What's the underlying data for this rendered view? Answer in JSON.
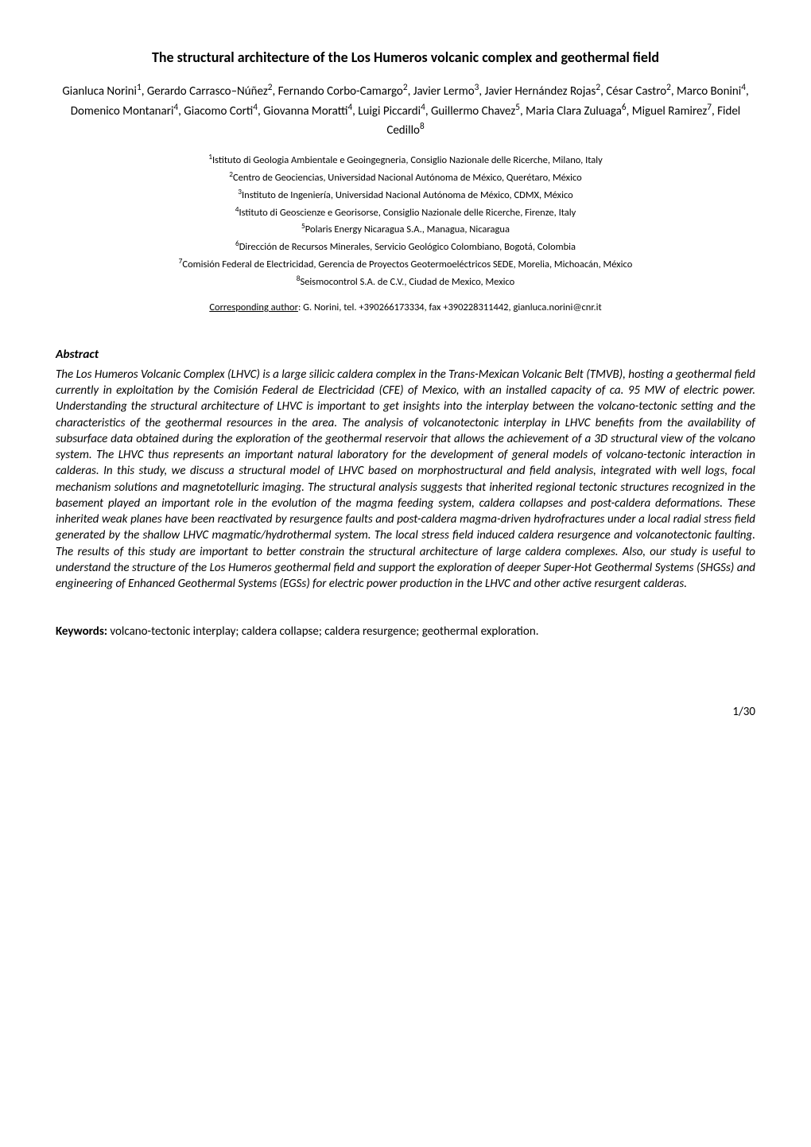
{
  "title": "The structural architecture of the Los Humeros volcanic complex and geothermal field",
  "authors_html": "Gianluca Norini<sup>1</sup>, Gerardo Carrasco–Núñez<sup>2</sup>, Fernando Corbo-Camargo<sup>2</sup>, Javier Lermo<sup>3</sup>, Javier Hernández Rojas<sup>2</sup>, César Castro<sup>2</sup>, Marco Bonini<sup>4</sup>, Domenico Montanari<sup>4</sup>, Giacomo Corti<sup>4</sup>, Giovanna Moratti<sup>4</sup>, Luigi Piccardi<sup>4</sup>, Guillermo Chavez<sup>5</sup>, Maria Clara Zuluaga<sup>6</sup>, Miguel Ramirez<sup>7</sup>, Fidel Cedillo<sup>8</sup>",
  "affiliations": [
    {
      "num": "1",
      "text": "Istituto di Geologia Ambientale e Geoingegneria, Consiglio Nazionale delle Ricerche, Milano, Italy"
    },
    {
      "num": "2",
      "text": "Centro de Geociencias, Universidad Nacional Autónoma de México, Querétaro, México"
    },
    {
      "num": "3",
      "text": "Instituto de Ingeniería, Universidad Nacional Autónoma de México, CDMX, México"
    },
    {
      "num": "4",
      "text": "Istituto di Geoscienze e Georisorse, Consiglio Nazionale delle Ricerche, Firenze, Italy"
    },
    {
      "num": "5",
      "text": "Polaris Energy Nicaragua S.A., Managua, Nicaragua"
    },
    {
      "num": "6",
      "text": "Dirección de Recursos Minerales, Servicio Geológico Colombiano, Bogotá, Colombia"
    },
    {
      "num": "7",
      "text": "Comisión Federal de Electricidad, Gerencia de Proyectos Geotermoeléctricos SEDE, Morelia, Michoacán, México"
    },
    {
      "num": "8",
      "text": "Seismocontrol S.A. de C.V., Ciudad de Mexico, Mexico"
    }
  ],
  "corresponding": {
    "label": "Corresponding author",
    "text": ": G. Norini, tel. +390266173334, fax +390228311442, gianluca.norini@cnr.it"
  },
  "abstract": {
    "heading": "Abstract",
    "body": "The Los Humeros Volcanic Complex (LHVC) is a large silicic caldera complex in the Trans-Mexican Volcanic Belt (TMVB), hosting a geothermal field currently in exploitation by the Comisión Federal de Electricidad (CFE) of Mexico, with an installed capacity of ca. 95 MW of electric power. Understanding the structural architecture of LHVC is important to get insights into the interplay between the volcano-tectonic setting and the characteristics of the geothermal resources in the area. The analysis of volcanotectonic interplay in LHVC benefits from the availability of subsurface data obtained during the exploration of the geothermal reservoir that allows the achievement of a 3D structural view of the volcano system. The LHVC thus represents an important natural laboratory for the development of general models of volcano-tectonic interaction in calderas. In this study, we discuss a structural model of LHVC based on morphostructural and field analysis, integrated with well logs, focal mechanism solutions and magnetotelluric imaging. The structural analysis suggests that inherited regional tectonic structures recognized in the basement played an important role in the evolution of the magma feeding system, caldera collapses and post-caldera deformations. These inherited weak planes have been reactivated by resurgence faults and post-caldera magma-driven hydrofractures under a local radial stress field generated by the shallow LHVC magmatic/hydrothermal system. The local stress field induced caldera resurgence and volcanotectonic faulting. The results of this study are important to better constrain the structural architecture of large caldera complexes. Also, our study is useful to understand the structure of the Los Humeros geothermal field and support the exploration of deeper Super-Hot Geothermal Systems (SHGSs) and engineering of Enhanced Geothermal Systems (EGSs) for electric power production in the LHVC and other active resurgent calderas."
  },
  "keywords": {
    "label": "Keywords:",
    "text": " volcano-tectonic interplay; caldera collapse; caldera resurgence; geothermal exploration."
  },
  "page_number": "1/30"
}
